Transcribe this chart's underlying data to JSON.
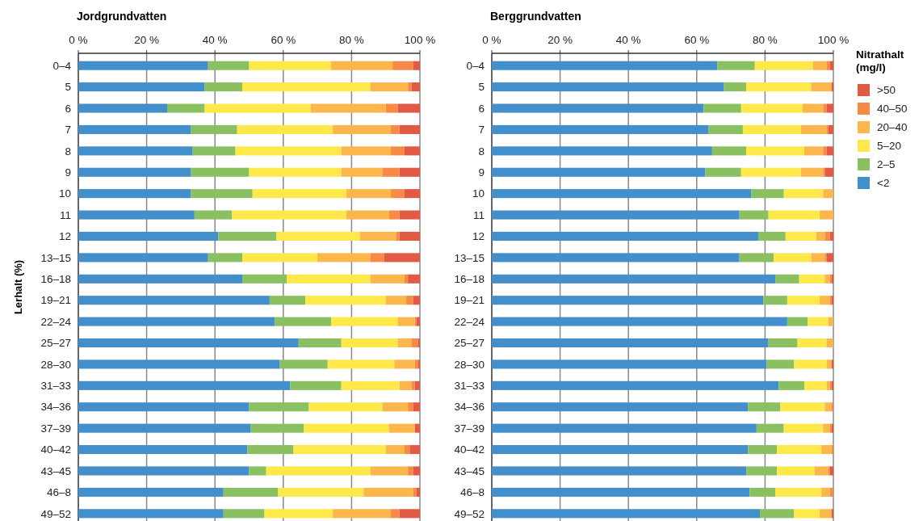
{
  "chart_data": [
    {
      "type": "bar",
      "orientation": "horizontal",
      "stacked": true,
      "title": "Jordgrundvatten",
      "ylabel": "Lerhalt (%)",
      "categories": [
        "0–4",
        "5",
        "6",
        "7",
        "8",
        "9",
        "10",
        "11",
        "12",
        "13–15",
        "16–18",
        "19–21",
        "22–24",
        "25–27",
        "28–30",
        "31–33",
        "34–36",
        "37–39",
        "40–42",
        "43–45",
        "46–8",
        "49–52"
      ],
      "xlim": [
        0,
        100
      ],
      "xticks": [
        {
          "value": 0,
          "label": "0 %"
        },
        {
          "value": 20,
          "label": "20 %"
        },
        {
          "value": 40,
          "label": "40 %"
        },
        {
          "value": 60,
          "label": "60 %"
        },
        {
          "value": 80,
          "label": "80 %"
        },
        {
          "value": 100,
          "label": "100 %"
        }
      ],
      "grid": "x",
      "series": [
        {
          "color": "#428fcb",
          "values": [
            38,
            37,
            26,
            33,
            33.5,
            33,
            33,
            34,
            41,
            38,
            48,
            56,
            57.5,
            64.5,
            59,
            62,
            50,
            50.5,
            49.5,
            50,
            42.5,
            42.5
          ]
        },
        {
          "color": "#8bc062",
          "values": [
            12,
            11,
            11,
            13.5,
            12.5,
            17,
            18,
            11,
            17,
            10,
            13,
            10.5,
            16.5,
            12.5,
            14,
            15,
            17.5,
            15.5,
            13.5,
            5,
            16,
            12
          ]
        },
        {
          "color": "#fee84a",
          "values": [
            24,
            37.5,
            31,
            28,
            31,
            27,
            27.5,
            33.5,
            24.5,
            22,
            24.5,
            23.5,
            19.5,
            16.5,
            19.5,
            17,
            21.5,
            25,
            27,
            30.5,
            25,
            20
          ]
        },
        {
          "color": "#fbb74c",
          "values": [
            18,
            11,
            22,
            17,
            14.5,
            12,
            13,
            12.5,
            10.5,
            15.5,
            10,
            6,
            5,
            4,
            6,
            3.5,
            7.5,
            7.5,
            5.5,
            11,
            14.5,
            17
          ]
        },
        {
          "color": "#f68b47",
          "values": [
            6,
            1,
            3.5,
            2.5,
            4,
            5,
            4,
            3,
            1,
            4,
            1,
            2,
            0.5,
            2,
            1,
            1,
            1.5,
            0,
            1.5,
            1.5,
            1,
            2.5
          ]
        },
        {
          "color": "#e05a44",
          "values": [
            2,
            2.5,
            6.5,
            6,
            4.5,
            6,
            4.5,
            6,
            6,
            10.5,
            3.5,
            2,
            1,
            0.5,
            0.5,
            1.5,
            2,
            1.5,
            3,
            2,
            1,
            6
          ]
        }
      ]
    },
    {
      "type": "bar",
      "orientation": "horizontal",
      "stacked": true,
      "title": "Berggrundvatten",
      "legend_title": "Nitrathalt (mg/l)",
      "legend": "right",
      "categories": [
        "0–4",
        "5",
        "6",
        "7",
        "8",
        "9",
        "10",
        "11",
        "12",
        "13–15",
        "16–18",
        "19–21",
        "22–24",
        "25–27",
        "28–30",
        "31–33",
        "34–36",
        "37–39",
        "40–42",
        "43–45",
        "46–8",
        "49–52"
      ],
      "xlim": [
        0,
        100
      ],
      "xticks": [
        {
          "value": 0,
          "label": "0 %"
        },
        {
          "value": 20,
          "label": "20 %"
        },
        {
          "value": 40,
          "label": "40 %"
        },
        {
          "value": 60,
          "label": "60 %"
        },
        {
          "value": 80,
          "label": "80 %"
        },
        {
          "value": 100,
          "label": "100 %"
        }
      ],
      "grid": "x",
      "series": [
        {
          "name": "<2",
          "color": "#428fcb",
          "values": [
            66,
            68,
            62,
            63.5,
            64.5,
            62.5,
            76,
            72.5,
            78,
            72.5,
            83,
            79.5,
            86.5,
            81,
            80.5,
            84,
            75,
            77.5,
            75,
            74.5,
            75.5,
            78.5
          ]
        },
        {
          "name": "2–5",
          "color": "#8bc062",
          "values": [
            11,
            6.5,
            11,
            10,
            10,
            10.5,
            9.5,
            8.5,
            8,
            10,
            7,
            7,
            6,
            8.5,
            8,
            7.5,
            9.5,
            8,
            8.5,
            9,
            7.5,
            10
          ]
        },
        {
          "name": "5–20",
          "color": "#fee84a",
          "values": [
            17,
            19,
            18,
            17,
            17,
            17.5,
            11.5,
            15,
            9,
            11,
            7.5,
            9.5,
            6,
            8.5,
            9.5,
            6.5,
            13,
            11.5,
            13,
            11,
            13.5,
            7.5
          ]
        },
        {
          "name": "20–40",
          "color": "#fbb74c",
          "values": [
            4,
            6,
            6,
            7.5,
            5.5,
            6.5,
            3,
            4,
            2.5,
            4,
            1.5,
            3,
            1.5,
            2,
            1.5,
            1,
            2,
            2,
            3,
            4,
            2.5,
            3.5
          ]
        },
        {
          "name": "40–50",
          "color": "#f68b47",
          "values": [
            1,
            0,
            1,
            0.5,
            1,
            0.5,
            0,
            0,
            1.5,
            0.5,
            0.5,
            0.5,
            0,
            0,
            0,
            0.5,
            0.5,
            0.5,
            0.5,
            0.5,
            1,
            0
          ]
        },
        {
          "name": ">50",
          "color": "#e05a44",
          "values": [
            1,
            0.5,
            2,
            1.5,
            2,
            2.5,
            0,
            0,
            1,
            2,
            0.5,
            0.5,
            0,
            0,
            0.5,
            0.5,
            0,
            0.5,
            0,
            1,
            0,
            0.5
          ]
        }
      ]
    }
  ]
}
